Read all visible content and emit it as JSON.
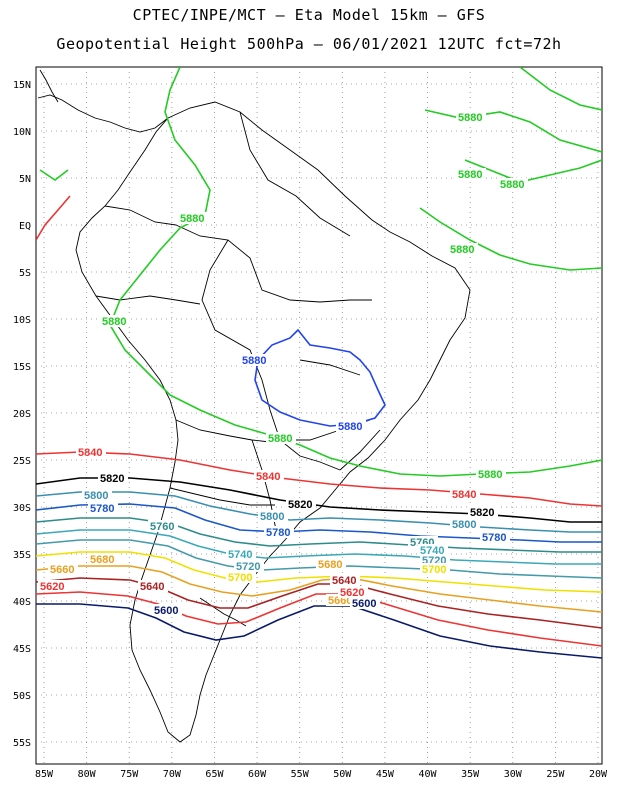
{
  "header": {
    "line1": "CPTEC/INPE/MCT –  Eta Model 15km – GFS",
    "line2": "Geopotential Height 500hPa – 06/01/2021 12UTC fct=72h"
  },
  "axes": {
    "lon_ticks": [
      "85W",
      "80W",
      "75W",
      "70W",
      "65W",
      "60W",
      "55W",
      "50W",
      "45W",
      "40W",
      "35W",
      "30W",
      "25W",
      "20W"
    ],
    "lat_ticks": [
      "15N",
      "10N",
      "5N",
      "EQ",
      "5S",
      "10S",
      "15S",
      "20S",
      "25S",
      "30S",
      "35S",
      "40S",
      "45S",
      "50S",
      "55S"
    ]
  },
  "colors": {
    "c5880": "#22cc22",
    "c5840": "#ee3333",
    "c5820": "#000000",
    "c5800": "#3a8fb0",
    "c5780": "#1a57c8",
    "c5760": "#2e8b8b",
    "c5740": "#3aa8b8",
    "c5720": "#4499aa",
    "c5700": "#f0e000",
    "c5680": "#e8a020",
    "c5660": "#e04040",
    "c5640": "#aa2222",
    "c5600": "#0a1a6a",
    "c5620": "#ee3333",
    "c5880b": "#2244ee"
  },
  "contour_labels": {
    "c5880_a": "5880",
    "c5880_b": "5880",
    "c5880_c": "5880",
    "c5880_d": "5880",
    "c5880_e": "5880",
    "c5880_f": "5880",
    "c5880_g": "5880",
    "c5880_h": "5880",
    "c5880_blue1": "5880",
    "c5880_blue2": "5880",
    "c5840_a": "5840",
    "c5840_b": "5840",
    "c5840_c": "5840",
    "c5820_a": "5820",
    "c5820_b": "5820",
    "c5820_c": "5820",
    "c5800_a": "5800",
    "c5800_b": "5800",
    "c5800_c": "5800",
    "c5780_a": "5780",
    "c5780_b": "5780",
    "c5780_c": "5780",
    "c5760_a": "5760",
    "c5760_b": "5760",
    "c5740_a": "5740",
    "c5740_b": "5740",
    "c5720_a": "5720",
    "c5720_b": "5720",
    "c5700_a": "5700",
    "c5700_b": "5700",
    "c5680_a": "5680",
    "c5680_b": "5680",
    "c5660_a": "5660",
    "c5660_b": "5660",
    "c5640_a": "5640",
    "c5640_b": "5640",
    "c5620_a": "5620",
    "c5620_b": "5620",
    "c5600_a": "5600",
    "c5600_b": "5600"
  }
}
